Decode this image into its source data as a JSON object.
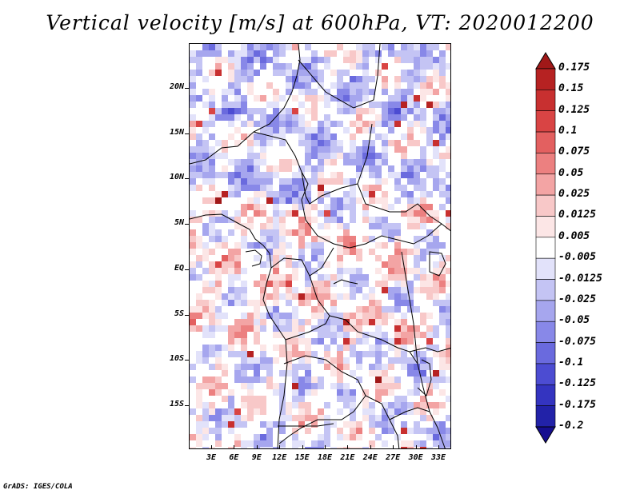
{
  "title": "Vertical velocity [m/s] at 600hPa, VT: 2020012200",
  "credit": "GrADS: IGES/COLA",
  "axes": {
    "lat_labels": [
      "20N",
      "15N",
      "10N",
      "5N",
      "EQ",
      "5S",
      "10S",
      "15S"
    ],
    "lon_labels": [
      "3E",
      "6E",
      "9E",
      "12E",
      "15E",
      "18E",
      "21E",
      "24E",
      "27E",
      "30E",
      "33E"
    ]
  },
  "colorbar": {
    "labels": [
      "0.175",
      "0.15",
      "0.125",
      "0.1",
      "0.075",
      "0.05",
      "0.025",
      "0.0125",
      "0.005",
      "-0.005",
      "-0.0125",
      "-0.025",
      "-0.05",
      "-0.075",
      "-0.1",
      "-0.125",
      "-0.175",
      "-0.2"
    ],
    "colors": [
      "#a01818",
      "#b62222",
      "#c83030",
      "#d94444",
      "#e36060",
      "#ec8080",
      "#f3a4a4",
      "#f8c8c8",
      "#fce6e6",
      "#ffffff",
      "#e2e2fa",
      "#c4c4f4",
      "#a6a6ee",
      "#8888e8",
      "#6a6ade",
      "#4c4cd2",
      "#3434c0",
      "#2222a8",
      "#160e90"
    ]
  },
  "chart_data": {
    "type": "heatmap",
    "title": "Vertical velocity [m/s] at 600hPa, VT: 2020012200",
    "variable": "Vertical velocity",
    "units": "m/s",
    "level": "600hPa",
    "valid_time": "2020012200",
    "lat_ticks": [
      "20N",
      "15N",
      "10N",
      "5N",
      "EQ",
      "5S",
      "10S",
      "15S"
    ],
    "lon_ticks": [
      "3E",
      "6E",
      "9E",
      "12E",
      "15E",
      "18E",
      "21E",
      "24E",
      "27E",
      "30E",
      "33E"
    ],
    "contour_levels": [
      -0.2,
      -0.175,
      -0.125,
      -0.1,
      -0.075,
      -0.05,
      -0.025,
      -0.0125,
      -0.005,
      0.005,
      0.0125,
      0.025,
      0.05,
      0.075,
      0.1,
      0.125,
      0.15,
      0.175
    ]
  }
}
